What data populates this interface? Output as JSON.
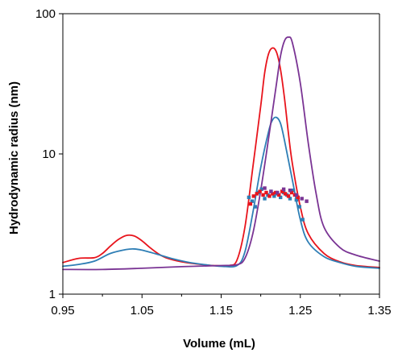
{
  "chart_data": {
    "type": "line",
    "title": "",
    "xlabel": "Volume (mL)",
    "ylabel": "Hydrodynamic radius (nm)",
    "xlim": [
      0.95,
      1.35
    ],
    "ylim": [
      1,
      100
    ],
    "yscale": "log",
    "grid": false,
    "legend": "none",
    "x_ticks": [
      "0.95",
      "1.05",
      "1.15",
      "1.25",
      "1.35"
    ],
    "y_ticks": [
      "1",
      "10",
      "100"
    ],
    "series": [
      {
        "color": "#e8141c",
        "x": [
          0.95,
          0.97,
          0.99,
          1.0,
          1.01,
          1.02,
          1.03,
          1.04,
          1.05,
          1.06,
          1.07,
          1.08,
          1.1,
          1.12,
          1.14,
          1.16,
          1.17,
          1.18,
          1.19,
          1.2,
          1.205,
          1.21,
          1.215,
          1.22,
          1.225,
          1.23,
          1.235,
          1.24,
          1.25,
          1.26,
          1.28,
          1.3,
          1.32,
          1.35
        ],
        "y": [
          1.68,
          1.8,
          1.82,
          1.95,
          2.2,
          2.45,
          2.62,
          2.6,
          2.4,
          2.15,
          1.95,
          1.82,
          1.7,
          1.64,
          1.6,
          1.6,
          1.75,
          3.0,
          8.0,
          22.0,
          38.0,
          52.0,
          57.0,
          53.0,
          40.0,
          25.0,
          14.0,
          8.5,
          4.2,
          2.7,
          1.95,
          1.7,
          1.6,
          1.55
        ]
      },
      {
        "color": "#2e7eb5",
        "x": [
          0.95,
          0.97,
          0.99,
          1.01,
          1.03,
          1.04,
          1.05,
          1.07,
          1.09,
          1.11,
          1.13,
          1.15,
          1.17,
          1.18,
          1.19,
          1.2,
          1.21,
          1.215,
          1.22,
          1.225,
          1.23,
          1.24,
          1.25,
          1.26,
          1.28,
          1.3,
          1.32,
          1.35
        ],
        "y": [
          1.58,
          1.63,
          1.72,
          1.95,
          2.08,
          2.1,
          2.06,
          1.92,
          1.78,
          1.68,
          1.62,
          1.58,
          1.6,
          2.0,
          3.8,
          8.0,
          14.5,
          17.5,
          18.2,
          16.5,
          12.5,
          6.5,
          3.4,
          2.35,
          1.85,
          1.68,
          1.58,
          1.53
        ]
      },
      {
        "color": "#7a3494",
        "x": [
          0.95,
          1.0,
          1.05,
          1.1,
          1.15,
          1.17,
          1.18,
          1.19,
          1.2,
          1.21,
          1.22,
          1.225,
          1.23,
          1.235,
          1.24,
          1.25,
          1.26,
          1.27,
          1.28,
          1.3,
          1.32,
          1.35
        ],
        "y": [
          1.5,
          1.5,
          1.53,
          1.57,
          1.6,
          1.62,
          1.8,
          2.7,
          5.5,
          13.0,
          32.0,
          50.0,
          64.0,
          68.0,
          62.0,
          32.0,
          12.0,
          5.2,
          3.0,
          2.15,
          1.9,
          1.72
        ]
      }
    ],
    "scatter": [
      {
        "color": "#2e7eb5",
        "x": [
          1.185,
          1.189,
          1.193,
          1.197,
          1.201,
          1.205,
          1.209,
          1.213,
          1.217,
          1.221,
          1.225,
          1.229,
          1.233,
          1.237,
          1.241,
          1.245,
          1.249,
          1.253
        ],
        "y": [
          4.9,
          4.6,
          4.2,
          5.3,
          5.6,
          4.8,
          5.1,
          5.4,
          5.0,
          5.2,
          4.9,
          5.3,
          5.1,
          4.8,
          5.5,
          4.7,
          4.2,
          3.4
        ]
      },
      {
        "color": "#e8141c",
        "x": [
          1.187,
          1.191,
          1.195,
          1.199,
          1.203,
          1.207,
          1.211,
          1.215,
          1.219,
          1.223,
          1.227,
          1.231,
          1.235,
          1.239,
          1.243,
          1.247
        ],
        "y": [
          4.4,
          5.0,
          5.2,
          5.4,
          5.1,
          5.3,
          5.0,
          5.2,
          5.3,
          5.1,
          5.4,
          5.2,
          5.0,
          5.3,
          5.1,
          4.9
        ]
      },
      {
        "color": "#7a3494",
        "x": [
          1.205,
          1.213,
          1.221,
          1.229,
          1.237,
          1.245,
          1.252,
          1.258
        ],
        "y": [
          5.7,
          5.4,
          5.3,
          5.6,
          5.5,
          5.1,
          4.8,
          4.6
        ]
      }
    ]
  }
}
